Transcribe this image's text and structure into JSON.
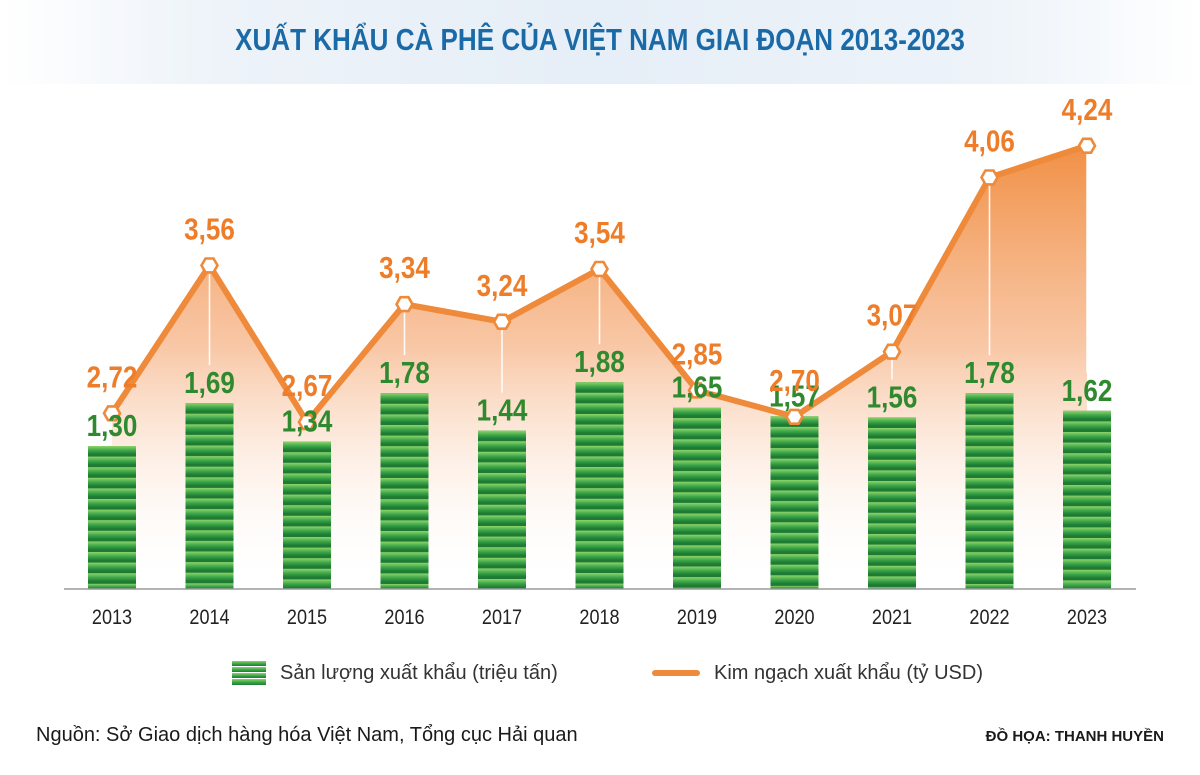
{
  "chart_data": {
    "type": "bar+line",
    "title": "XUẤT KHẨU CÀ PHÊ CỦA VIỆT NAM GIAI ĐOẠN 2013-2023",
    "categories": [
      "2013",
      "2014",
      "2015",
      "2016",
      "2017",
      "2018",
      "2019",
      "2020",
      "2021",
      "2022",
      "2023"
    ],
    "series": [
      {
        "name": "Sản lượng xuất khẩu (triệu tấn)",
        "type": "bar",
        "color": "#2e9a3e",
        "values": [
          1.3,
          1.69,
          1.34,
          1.78,
          1.44,
          1.88,
          1.65,
          1.57,
          1.56,
          1.78,
          1.62
        ],
        "labels": [
          "1,30",
          "1,69",
          "1,34",
          "1,78",
          "1,44",
          "1,88",
          "1,65",
          "1,57",
          "1,56",
          "1,78",
          "1,62"
        ]
      },
      {
        "name": "Kim ngạch xuất khẩu (tỷ USD)",
        "type": "line",
        "color": "#ee8a3a",
        "values": [
          2.72,
          3.56,
          2.67,
          3.34,
          3.24,
          3.54,
          2.85,
          2.7,
          3.07,
          4.06,
          4.24
        ],
        "labels": [
          "2,72",
          "3,56",
          "2,67",
          "3,34",
          "3,24",
          "3,54",
          "2,85",
          "2,70",
          "3,07",
          "4,06",
          "4,24"
        ]
      }
    ]
  },
  "legend": {
    "bars_label": "Sản lượng xuất khẩu (triệu tấn)",
    "line_label": "Kim ngạch xuất khẩu (tỷ USD)"
  },
  "footer": {
    "source": "Nguồn: Sở Giao dịch hàng hóa Việt Nam, Tổng cục Hải quan",
    "credit": "ĐỒ HỌA: THANH HUYỀN"
  },
  "colors": {
    "title": "#1b6aa8",
    "bar_light": "#6cc35a",
    "bar_dark": "#1f7a34",
    "line": "#ee8a3a",
    "label_bar": "#2f8a2f",
    "label_line": "#ee7d2a"
  }
}
